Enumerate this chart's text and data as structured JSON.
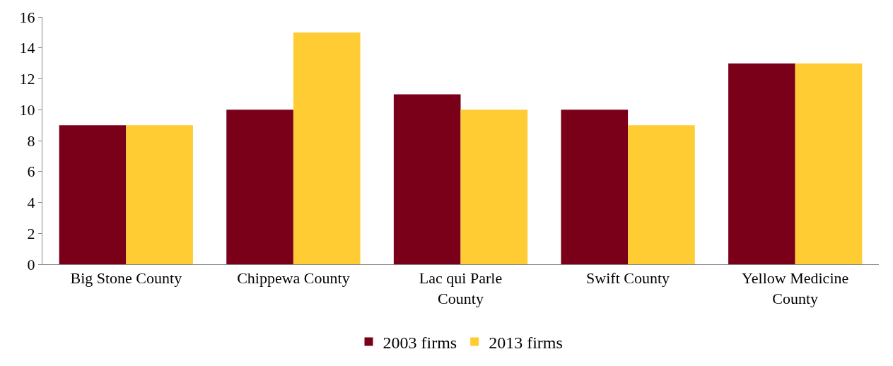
{
  "chart_data": {
    "type": "bar",
    "categories": [
      "Big Stone County",
      "Chippewa County",
      "Lac qui Parle County",
      "Swift County",
      "Yellow Medicine County"
    ],
    "series": [
      {
        "name": "2003 firms",
        "color": "#7a0019",
        "values": [
          9,
          10,
          11,
          10,
          13
        ]
      },
      {
        "name": "2013 firms",
        "color": "#ffcc33",
        "values": [
          9,
          15,
          10,
          9,
          13
        ]
      }
    ],
    "ylim": [
      0,
      16
    ],
    "yticks": [
      0,
      2,
      4,
      6,
      8,
      10,
      12,
      14,
      16
    ],
    "legend": "bottom"
  }
}
